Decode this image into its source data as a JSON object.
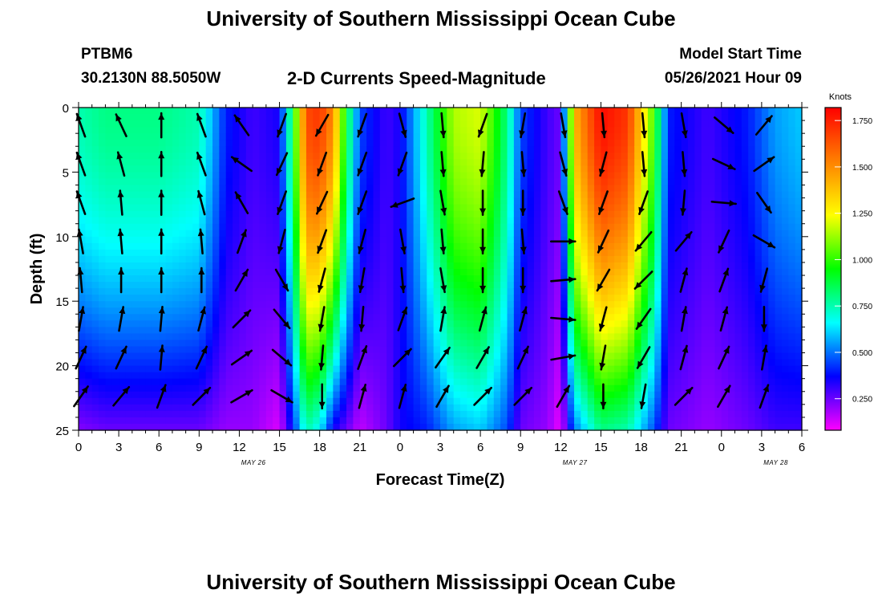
{
  "page": {
    "title_top": "University of Southern Mississippi Ocean Cube",
    "title_bottom": "University of Southern Mississippi Ocean Cube",
    "station": "PTBM6",
    "location": "30.2130N  88.5050W",
    "plot_title": "2-D Currents Speed-Magnitude",
    "model_start_label": "Model Start Time",
    "model_start_value": "05/26/2021 Hour 09"
  },
  "chart_data": {
    "type": "heatmap",
    "title": "2-D Currents Speed-Magnitude",
    "xlabel": "Forecast Time(Z)",
    "ylabel": "Depth (ft)",
    "colorbar_label": "Knots",
    "x_ticks": [
      "0",
      "3",
      "6",
      "9",
      "12",
      "15",
      "18",
      "21",
      "0",
      "3",
      "6",
      "9",
      "12",
      "15",
      "18",
      "21",
      "0",
      "3",
      "6"
    ],
    "date_labels": [
      {
        "text": "MAY 26",
        "at_hour": 13
      },
      {
        "text": "MAY 27",
        "at_hour": 37
      },
      {
        "text": "MAY 28",
        "at_hour": 52
      }
    ],
    "y_ticks": [
      "0",
      "5",
      "10",
      "15",
      "20",
      "25"
    ],
    "ylim": [
      0,
      25
    ],
    "xlim_hours": [
      0,
      54
    ],
    "colorbar_ticks": [
      "0.250",
      "0.500",
      "0.750",
      "1.000",
      "1.250",
      "1.500",
      "1.750"
    ],
    "colorbar_range": [
      0.08,
      1.82
    ],
    "colors": [
      "#ff00ff",
      "#0000ff",
      "#00ffff",
      "#00ff00",
      "#ffff00",
      "#ff8000",
      "#ff0000"
    ],
    "speed_profiles": [
      {
        "hour": 0,
        "surface": 0.75,
        "bottom": 0.22
      },
      {
        "hour": 2,
        "surface": 0.8,
        "bottom": 0.25
      },
      {
        "hour": 6,
        "surface": 0.8,
        "bottom": 0.25
      },
      {
        "hour": 9,
        "surface": 0.75,
        "bottom": 0.25
      },
      {
        "hour": 11,
        "surface": 0.4,
        "bottom": 0.2
      },
      {
        "hour": 13,
        "surface": 0.3,
        "bottom": 0.2
      },
      {
        "hour": 15,
        "surface": 0.35,
        "bottom": 0.12
      },
      {
        "hour": 16,
        "surface": 0.9,
        "bottom": 0.4
      },
      {
        "hour": 17,
        "surface": 1.65,
        "bottom": 0.75
      },
      {
        "hour": 18,
        "surface": 1.7,
        "bottom": 0.65
      },
      {
        "hour": 19,
        "surface": 1.5,
        "bottom": 0.35
      },
      {
        "hour": 20,
        "surface": 0.9,
        "bottom": 0.25
      },
      {
        "hour": 21,
        "surface": 0.45,
        "bottom": 0.15
      },
      {
        "hour": 23,
        "surface": 0.3,
        "bottom": 0.25
      },
      {
        "hour": 24,
        "surface": 0.35,
        "bottom": 0.35
      },
      {
        "hour": 26,
        "surface": 0.75,
        "bottom": 0.4
      },
      {
        "hour": 28,
        "surface": 1.15,
        "bottom": 0.55
      },
      {
        "hour": 30,
        "surface": 1.2,
        "bottom": 0.6
      },
      {
        "hour": 32,
        "surface": 0.8,
        "bottom": 0.45
      },
      {
        "hour": 33,
        "surface": 0.45,
        "bottom": 0.25
      },
      {
        "hour": 35,
        "surface": 0.3,
        "bottom": 0.2
      },
      {
        "hour": 36,
        "surface": 0.25,
        "bottom": 0.1
      },
      {
        "hour": 37,
        "surface": 1.4,
        "bottom": 0.5
      },
      {
        "hour": 39,
        "surface": 1.8,
        "bottom": 0.8
      },
      {
        "hour": 41,
        "surface": 1.7,
        "bottom": 0.75
      },
      {
        "hour": 43,
        "surface": 1.0,
        "bottom": 0.45
      },
      {
        "hour": 44,
        "surface": 0.4,
        "bottom": 0.25
      },
      {
        "hour": 47,
        "surface": 0.3,
        "bottom": 0.2
      },
      {
        "hour": 50,
        "surface": 0.4,
        "bottom": 0.25
      },
      {
        "hour": 52,
        "surface": 0.55,
        "bottom": 0.3
      },
      {
        "hour": 54,
        "surface": 0.6,
        "bottom": 0.3
      }
    ],
    "vector_depths_ft": [
      1,
      4,
      7,
      10,
      13,
      16,
      19,
      22
    ],
    "vectors": [
      {
        "hour": 0,
        "angles": [
          -20,
          340,
          340,
          350,
          355,
          10,
          25,
          35
        ]
      },
      {
        "hour": 3,
        "angles": [
          -25,
          -15,
          -5,
          -5,
          0,
          10,
          25,
          40
        ]
      },
      {
        "hour": 6,
        "angles": [
          0,
          0,
          0,
          0,
          0,
          5,
          5,
          20
        ]
      },
      {
        "hour": 9,
        "angles": [
          -20,
          -20,
          -15,
          -5,
          0,
          15,
          25,
          45
        ]
      },
      {
        "hour": 12,
        "angles": [
          -35,
          -55,
          -30,
          20,
          30,
          45,
          55,
          60
        ]
      },
      {
        "hour": 15,
        "angles": [
          200,
          205,
          200,
          195,
          150,
          140,
          130,
          120
        ]
      },
      {
        "hour": 18,
        "angles": [
          210,
          200,
          205,
          200,
          195,
          190,
          185,
          180
        ]
      },
      {
        "hour": 21,
        "angles": [
          200,
          200,
          200,
          195,
          190,
          185,
          20,
          15
        ]
      },
      {
        "hour": 24,
        "angles": [
          165,
          200,
          250,
          170,
          175,
          20,
          45,
          15
        ]
      },
      {
        "hour": 27,
        "angles": [
          175,
          175,
          170,
          175,
          170,
          10,
          35,
          30
        ]
      },
      {
        "hour": 30,
        "angles": [
          200,
          185,
          180,
          180,
          180,
          15,
          30,
          45
        ]
      },
      {
        "hour": 33,
        "angles": [
          190,
          175,
          180,
          175,
          180,
          15,
          25,
          45
        ]
      },
      {
        "hour": 36,
        "angles": [
          170,
          165,
          160,
          90,
          85,
          95,
          80,
          30
        ]
      },
      {
        "hour": 39,
        "angles": [
          175,
          195,
          200,
          205,
          210,
          195,
          190,
          180
        ]
      },
      {
        "hour": 42,
        "angles": [
          175,
          175,
          200,
          220,
          225,
          215,
          210,
          190
        ]
      },
      {
        "hour": 45,
        "angles": [
          170,
          175,
          185,
          40,
          15,
          10,
          15,
          45
        ]
      },
      {
        "hour": 48,
        "angles": [
          130,
          115,
          95,
          205,
          20,
          15,
          25,
          30
        ]
      },
      {
        "hour": 51,
        "angles": [
          40,
          55,
          145,
          120,
          195,
          180,
          10,
          20
        ]
      }
    ]
  }
}
